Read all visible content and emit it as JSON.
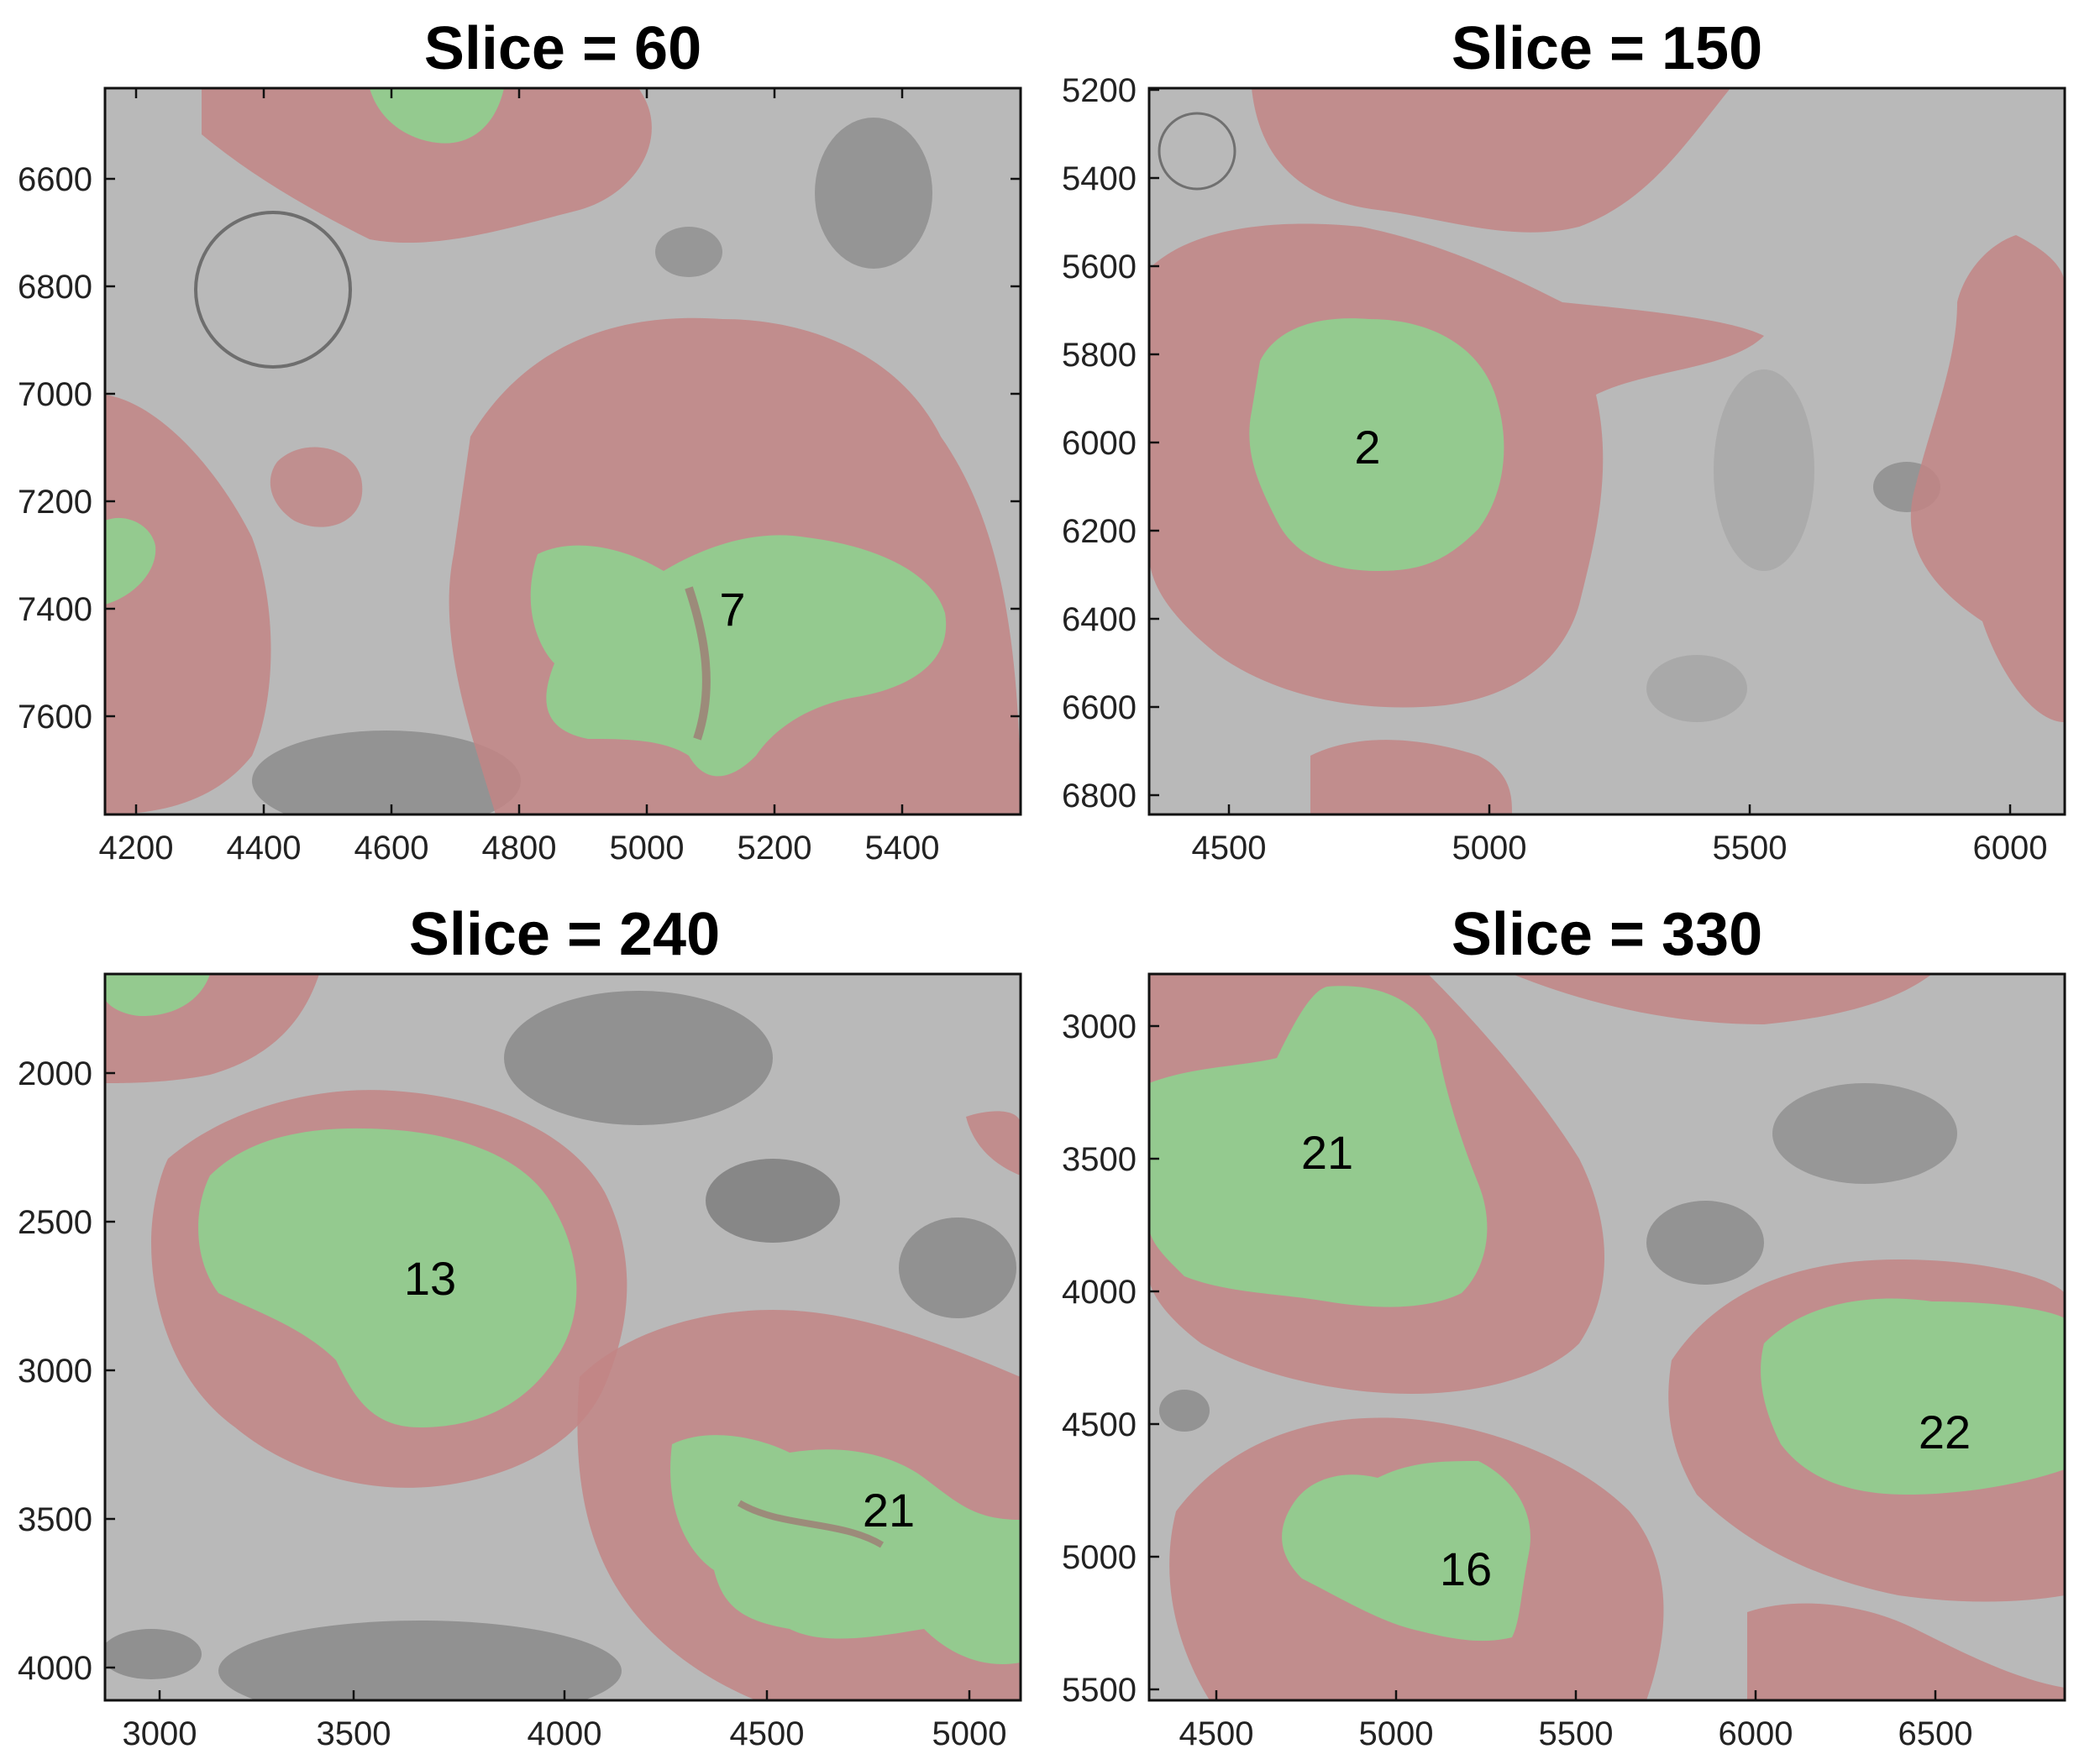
{
  "figure": {
    "colors": {
      "background_em": "#b9b9b9",
      "dark_tissue": "#8a8a8a",
      "membrane_region": "#c28585",
      "nucleus_region": "#8fd08f"
    },
    "panels": [
      {
        "title": "Slice = 60",
        "x_ticks": [
          "4200",
          "4400",
          "4600",
          "4800",
          "5000",
          "5200",
          "5400"
        ],
        "y_ticks": [
          "6600",
          "6800",
          "7000",
          "7200",
          "7400",
          "7600"
        ],
        "labels": [
          "7"
        ]
      },
      {
        "title": "Slice = 150",
        "x_ticks": [
          "4500",
          "5000",
          "5500",
          "6000"
        ],
        "y_ticks": [
          "5200",
          "5400",
          "5600",
          "5800",
          "6000",
          "6200",
          "6400",
          "6600",
          "6800"
        ],
        "labels": [
          "2"
        ]
      },
      {
        "title": "Slice = 240",
        "x_ticks": [
          "3000",
          "3500",
          "4000",
          "4500",
          "5000"
        ],
        "y_ticks": [
          "2000",
          "2500",
          "3000",
          "3500",
          "4000"
        ],
        "labels": [
          "13",
          "21"
        ]
      },
      {
        "title": "Slice = 330",
        "x_ticks": [
          "4500",
          "5000",
          "5500",
          "6000",
          "6500"
        ],
        "y_ticks": [
          "3000",
          "3500",
          "4000",
          "4500",
          "5000",
          "5500"
        ],
        "labels": [
          "21",
          "22",
          "16"
        ]
      }
    ]
  }
}
